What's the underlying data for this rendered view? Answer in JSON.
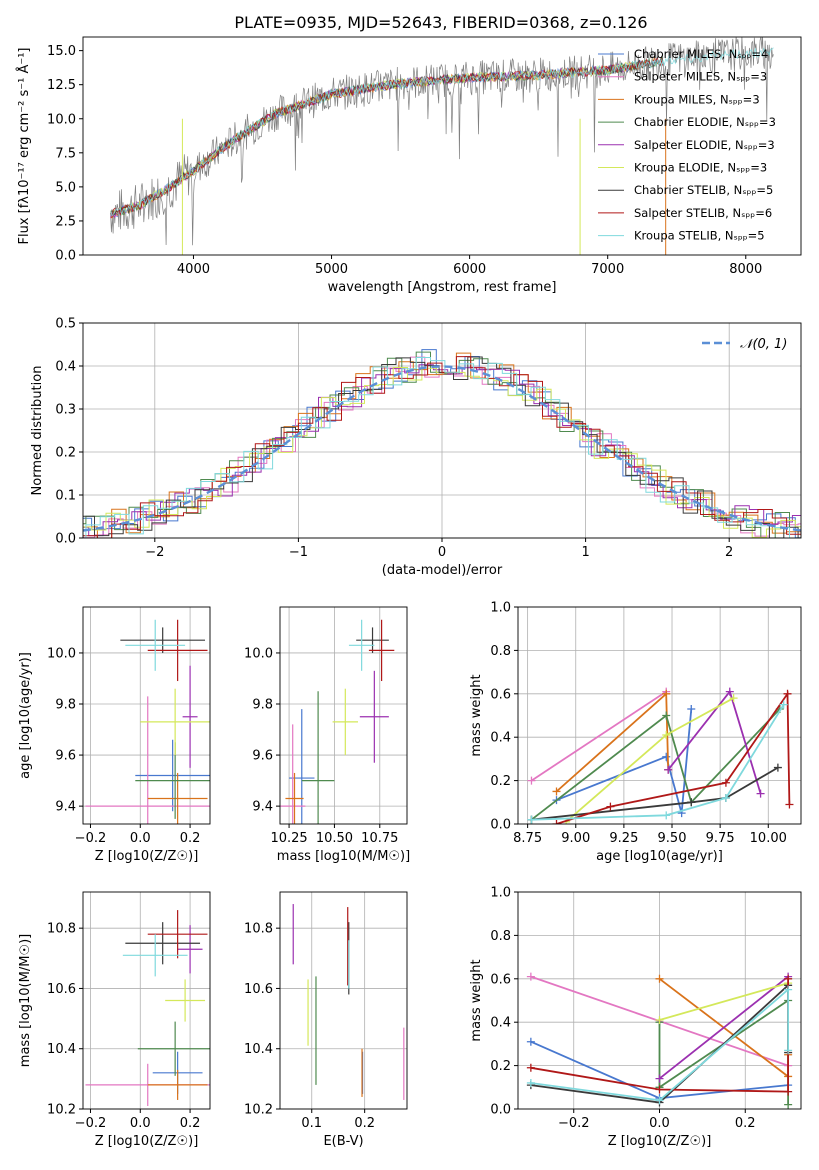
{
  "title": "PLATE=0935, MJD=52643, FIBERID=0368, z=0.126",
  "series": [
    {
      "name": "Chabrier MILES",
      "nssp": "4",
      "color": "#4878cf"
    },
    {
      "name": "Salpeter MILES",
      "nssp": "3",
      "color": "#e377c2"
    },
    {
      "name": "Kroupa MILES",
      "nssp": "3",
      "color": "#d9731b"
    },
    {
      "name": "Chabrier ELODIE",
      "nssp": "3",
      "color": "#4f8a4f"
    },
    {
      "name": "Salpeter ELODIE",
      "nssp": "3",
      "color": "#9b30b0"
    },
    {
      "name": "Kroupa ELODIE",
      "nssp": "3",
      "color": "#d4e85a"
    },
    {
      "name": "Chabrier STELIB",
      "nssp": "5",
      "color": "#3a3a3a"
    },
    {
      "name": "Salpeter STELIB",
      "nssp": "6",
      "color": "#b01818"
    },
    {
      "name": "Kroupa STELIB",
      "nssp": "5",
      "color": "#7fd9dd"
    }
  ],
  "chart_data": [
    {
      "type": "line",
      "title": "PLATE=0935, MJD=52643, FIBERID=0368, z=0.126",
      "xlabel": "wavelength [Angstrom, rest frame]",
      "ylabel": "Flux [fλ10⁻¹⁷ erg cm⁻² s⁻¹ Å⁻¹]",
      "xlim": [
        3200,
        8400
      ],
      "ylim": [
        0,
        16
      ],
      "xticks": [
        4000,
        5000,
        6000,
        7000,
        8000
      ],
      "yticks": [
        0.0,
        2.5,
        5.0,
        7.5,
        10.0,
        12.5,
        15.0
      ],
      "data_envelope": {
        "x": [
          3400,
          3600,
          3800,
          4000,
          4300,
          4600,
          5000,
          5500,
          6000,
          6500,
          7000,
          7500,
          8000,
          8200
        ],
        "y": [
          3.0,
          3.6,
          4.8,
          6.2,
          8.5,
          10.4,
          11.8,
          12.6,
          13.0,
          13.2,
          13.6,
          14.4,
          14.8,
          14.9
        ]
      },
      "grid": false,
      "legend": "right"
    },
    {
      "type": "bar",
      "xlabel": "(data-model)/error",
      "ylabel": "Normed distribution",
      "xlim": [
        -2.5,
        2.5
      ],
      "ylim": [
        0,
        0.5
      ],
      "xticks": [
        -2,
        -1,
        0,
        1,
        2
      ],
      "yticks": [
        0.0,
        0.1,
        0.2,
        0.3,
        0.4,
        0.5
      ],
      "reference": "N(0,1)",
      "grid": true,
      "legend": "top-right"
    },
    {
      "type": "scatter",
      "xlabel": "Z [log10(Z/Z☉)]",
      "ylabel": "age [log10(age/yr)]",
      "xlim": [
        -0.23,
        0.28
      ],
      "ylim": [
        9.33,
        10.18
      ],
      "xticks": [
        -0.2,
        0.0,
        0.2
      ],
      "yticks": [
        9.4,
        9.6,
        9.8,
        10.0
      ],
      "points": [
        {
          "s": 0,
          "x": 0.13,
          "y": 9.52,
          "xe": 0.15,
          "ye": 0.14
        },
        {
          "s": 1,
          "x": 0.03,
          "y": 9.4,
          "xe": 0.25,
          "ye": 0.43
        },
        {
          "s": 2,
          "x": 0.15,
          "y": 9.43,
          "xe": 0.12,
          "ye": 0.1
        },
        {
          "s": 3,
          "x": 0.14,
          "y": 9.5,
          "xe": 0.16,
          "ye": 0.15
        },
        {
          "s": 4,
          "x": 0.2,
          "y": 9.75,
          "xe": 0.03,
          "ye": 0.2
        },
        {
          "s": 5,
          "x": 0.14,
          "y": 9.73,
          "xe": 0.14,
          "ye": 0.13
        },
        {
          "s": 6,
          "x": 0.09,
          "y": 10.05,
          "xe": 0.17,
          "ye": 0.05
        },
        {
          "s": 7,
          "x": 0.15,
          "y": 10.01,
          "xe": 0.12,
          "ye": 0.12
        },
        {
          "s": 8,
          "x": 0.06,
          "y": 10.03,
          "xe": 0.12,
          "ye": 0.1
        }
      ]
    },
    {
      "type": "scatter",
      "xlabel": "mass [log10(M/M☉)]",
      "xlim": [
        10.2,
        10.9
      ],
      "ylim": [
        9.33,
        10.18
      ],
      "xticks": [
        10.25,
        10.5,
        10.75
      ],
      "yticks": [
        9.4,
        9.6,
        9.8,
        10.0
      ],
      "points": [
        {
          "s": 0,
          "x": 10.32,
          "y": 9.51,
          "xe": 0.07,
          "ye": 0.27
        },
        {
          "s": 1,
          "x": 10.27,
          "y": 9.4,
          "xe": 0.07,
          "ye": 0.32
        },
        {
          "s": 2,
          "x": 10.28,
          "y": 9.43,
          "xe": 0.05,
          "ye": 0.1
        },
        {
          "s": 3,
          "x": 10.41,
          "y": 9.5,
          "xe": 0.09,
          "ye": 0.35
        },
        {
          "s": 4,
          "x": 10.72,
          "y": 9.75,
          "xe": 0.08,
          "ye": 0.18
        },
        {
          "s": 5,
          "x": 10.56,
          "y": 9.73,
          "xe": 0.07,
          "ye": 0.13
        },
        {
          "s": 6,
          "x": 10.71,
          "y": 10.05,
          "xe": 0.09,
          "ye": 0.05
        },
        {
          "s": 7,
          "x": 10.76,
          "y": 10.01,
          "xe": 0.07,
          "ye": 0.12
        },
        {
          "s": 8,
          "x": 10.65,
          "y": 10.03,
          "xe": 0.07,
          "ye": 0.1
        }
      ]
    },
    {
      "type": "line",
      "xlabel": "age [log10(age/yr)]",
      "ylabel": "mass weight",
      "xlim": [
        8.7,
        10.17
      ],
      "ylim": [
        0,
        1
      ],
      "xticks": [
        8.75,
        9.0,
        9.25,
        9.5,
        9.75,
        10.0
      ],
      "yticks": [
        0.0,
        0.2,
        0.4,
        0.6,
        0.8,
        1.0
      ],
      "series": [
        {
          "s": 0,
          "x": [
            8.9,
            9.47,
            9.55,
            9.6
          ],
          "y": [
            0.11,
            0.31,
            0.05,
            0.53
          ]
        },
        {
          "s": 1,
          "x": [
            8.77,
            9.47
          ],
          "y": [
            0.2,
            0.61
          ]
        },
        {
          "s": 2,
          "x": [
            8.9,
            9.47,
            9.48
          ],
          "y": [
            0.15,
            0.6,
            0.25
          ]
        },
        {
          "s": 3,
          "x": [
            8.77,
            9.47,
            9.6,
            10.06
          ],
          "y": [
            0.02,
            0.5,
            0.1,
            0.53
          ]
        },
        {
          "s": 4,
          "x": [
            9.48,
            9.8,
            9.96
          ],
          "y": [
            0.25,
            0.61,
            0.14
          ]
        },
        {
          "s": 5,
          "x": [
            8.95,
            9.47,
            9.82
          ],
          "y": [
            0.01,
            0.41,
            0.58
          ]
        },
        {
          "s": 6,
          "x": [
            8.77,
            9.6,
            9.78,
            10.05
          ],
          "y": [
            0.02,
            0.1,
            0.12,
            0.26
          ]
        },
        {
          "s": 7,
          "x": [
            8.9,
            9.18,
            9.78,
            10.1,
            10.11
          ],
          "y": [
            0.0,
            0.08,
            0.19,
            0.6,
            0.09
          ]
        },
        {
          "s": 8,
          "x": [
            8.77,
            9.47,
            9.78,
            10.08
          ],
          "y": [
            0.02,
            0.04,
            0.12,
            0.55
          ]
        }
      ]
    },
    {
      "type": "scatter",
      "xlabel": "Z [log10(Z/Z☉)]",
      "ylabel": "mass [log10(M/M☉)]",
      "xlim": [
        -0.23,
        0.28
      ],
      "ylim": [
        10.2,
        10.92
      ],
      "xticks": [
        -0.2,
        0.0,
        0.2
      ],
      "yticks": [
        10.2,
        10.4,
        10.6,
        10.8
      ],
      "points": [
        {
          "s": 0,
          "x": 0.15,
          "y": 10.32,
          "xe": 0.1,
          "ye": 0.07
        },
        {
          "s": 1,
          "x": 0.03,
          "y": 10.28,
          "xe": 0.25,
          "ye": 0.07
        },
        {
          "s": 2,
          "x": 0.15,
          "y": 10.28,
          "xe": 0.12,
          "ye": 0.05
        },
        {
          "s": 3,
          "x": 0.14,
          "y": 10.4,
          "xe": 0.15,
          "ye": 0.09
        },
        {
          "s": 4,
          "x": 0.2,
          "y": 10.73,
          "xe": 0.05,
          "ye": 0.08
        },
        {
          "s": 5,
          "x": 0.18,
          "y": 10.56,
          "xe": 0.08,
          "ye": 0.07
        },
        {
          "s": 6,
          "x": 0.09,
          "y": 10.75,
          "xe": 0.15,
          "ye": 0.07
        },
        {
          "s": 7,
          "x": 0.15,
          "y": 10.78,
          "xe": 0.12,
          "ye": 0.08
        },
        {
          "s": 8,
          "x": 0.06,
          "y": 10.71,
          "xe": 0.13,
          "ye": 0.07
        }
      ]
    },
    {
      "type": "scatter",
      "xlabel": "E(B-V)",
      "xlim": [
        0.04,
        0.28
      ],
      "ylim": [
        10.2,
        10.92
      ],
      "xticks": [
        0.1,
        0.2
      ],
      "yticks": [
        10.2,
        10.4,
        10.6,
        10.8
      ],
      "points": [
        {
          "s": 0,
          "x": 0.196,
          "y": 10.32,
          "ye": 0.07
        },
        {
          "s": 1,
          "x": 0.274,
          "y": 10.35,
          "ye": 0.12
        },
        {
          "s": 2,
          "x": 0.195,
          "y": 10.32,
          "ye": 0.08
        },
        {
          "s": 3,
          "x": 0.108,
          "y": 10.46,
          "ye": 0.18
        },
        {
          "s": 4,
          "x": 0.065,
          "y": 10.78,
          "ye": 0.1
        },
        {
          "s": 5,
          "x": 0.093,
          "y": 10.52,
          "ye": 0.11
        },
        {
          "s": 6,
          "x": 0.17,
          "y": 10.7,
          "ye": 0.12
        },
        {
          "s": 7,
          "x": 0.168,
          "y": 10.74,
          "ye": 0.13
        },
        {
          "s": 8,
          "x": 0.17,
          "y": 10.68,
          "ye": 0.08
        }
      ]
    },
    {
      "type": "line",
      "xlabel": "Z [log10(Z/Z☉)]",
      "ylabel": "mass weight",
      "xlim": [
        -0.33,
        0.33
      ],
      "ylim": [
        0,
        1
      ],
      "xticks": [
        -0.2,
        0.0,
        0.2
      ],
      "yticks": [
        0.0,
        0.2,
        0.4,
        0.6,
        0.8,
        1.0
      ],
      "series": [
        {
          "s": 0,
          "x": [
            -0.3,
            0.0,
            0.3
          ],
          "y": [
            0.31,
            0.05,
            0.11
          ]
        },
        {
          "s": 1,
          "x": [
            -0.3,
            0.3
          ],
          "y": [
            0.61,
            0.2
          ]
        },
        {
          "s": 2,
          "x": [
            0.0,
            0.3,
            0.3
          ],
          "y": [
            0.6,
            0.15,
            0.25
          ]
        },
        {
          "s": 3,
          "x": [
            0.0,
            0.0,
            0.3,
            0.3
          ],
          "y": [
            0.4,
            0.1,
            0.5,
            0.02
          ]
        },
        {
          "s": 4,
          "x": [
            0.0,
            0.3
          ],
          "y": [
            0.14,
            0.61
          ]
        },
        {
          "s": 5,
          "x": [
            0.0,
            0.3
          ],
          "y": [
            0.41,
            0.58
          ]
        },
        {
          "s": 6,
          "x": [
            -0.3,
            0.0,
            0.3,
            0.3
          ],
          "y": [
            0.11,
            0.03,
            0.57,
            0.26
          ]
        },
        {
          "s": 7,
          "x": [
            -0.3,
            0.0,
            0.3,
            0.3
          ],
          "y": [
            0.19,
            0.09,
            0.08,
            0.6
          ]
        },
        {
          "s": 8,
          "x": [
            -0.3,
            0.0,
            0.3,
            0.3
          ],
          "y": [
            0.12,
            0.04,
            0.55,
            0.27
          ]
        }
      ]
    }
  ]
}
